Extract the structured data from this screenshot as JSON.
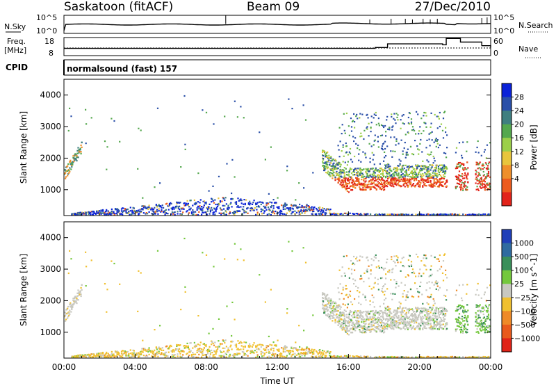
{
  "header": {
    "station": "Saskatoon (fitACF)",
    "beam": "Beam 09",
    "date": "27/Dec/2010"
  },
  "top_panels": {
    "nsky": {
      "label": "N.Sky",
      "right_label": "N.Search",
      "left_ticks": [
        "10^5",
        "10^0"
      ],
      "right_ticks": [
        "10^5",
        "10^0"
      ]
    },
    "freq": {
      "label_line1": "Freq.",
      "label_line2": "[MHz]",
      "right_label": "Nave",
      "left_ticks": [
        "18",
        "8"
      ],
      "right_ticks": [
        "60",
        "0"
      ],
      "freq_mhz": [
        [
          0,
          12
        ],
        [
          16,
          12
        ],
        [
          17.5,
          12.5
        ],
        [
          18.2,
          14.5
        ],
        [
          19.5,
          14.5
        ],
        [
          21.3,
          14
        ],
        [
          21.5,
          17.5
        ],
        [
          22.0,
          17.5
        ],
        [
          22.3,
          15.5
        ],
        [
          23.0,
          15.5
        ],
        [
          23.5,
          13.5
        ],
        [
          24,
          12.5
        ]
      ]
    },
    "cpid": {
      "label": "CPID",
      "program": "normalsound (fast) 157"
    }
  },
  "chart_data": [
    {
      "type": "heatmap",
      "name": "power",
      "x_range_hours": [
        0,
        24
      ],
      "y_range_km": [
        180,
        4500
      ],
      "ylabel": "Slant Range [km]",
      "yticks": [
        "4000",
        "3000",
        "2000",
        "1000"
      ],
      "colorbar": {
        "label": "Power [dB]",
        "ticks": [
          "28",
          "24",
          "20",
          "16",
          "12",
          "8",
          "4"
        ],
        "colors": [
          "#0a22d8",
          "#2a4fa8",
          "#3f7f80",
          "#55a84e",
          "#9ccf4a",
          "#e8c53c",
          "#ef8f2b",
          "#ec5b1e",
          "#e2231a"
        ]
      }
    },
    {
      "type": "heatmap",
      "name": "velocity",
      "x_range_hours": [
        0,
        24
      ],
      "y_range_km": [
        180,
        4500
      ],
      "ylabel": "Slant Range [km]",
      "yticks": [
        "4000",
        "3000",
        "2000",
        "1000"
      ],
      "colorbar": {
        "label": "Velocity [m s^-1]",
        "ticks": [
          "1000",
          "500",
          "100",
          "25",
          "−25",
          "−100",
          "−500",
          "−1000"
        ],
        "colors": [
          "#1f3fb8",
          "#2f6ba0",
          "#3a8f5a",
          "#74c83c",
          "#c8c8c0",
          "#f0c030",
          "#ee8a28",
          "#e85a1c",
          "#e02418"
        ]
      }
    }
  ],
  "x_axis": {
    "label": "Time UT",
    "ticks": [
      "00:00",
      "04:00",
      "08:00",
      "12:00",
      "16:00",
      "20:00",
      "00:00"
    ]
  }
}
